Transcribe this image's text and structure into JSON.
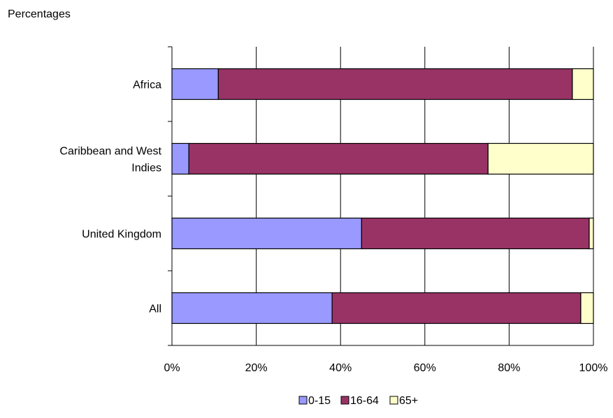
{
  "chart_data": {
    "type": "bar",
    "orientation": "horizontal",
    "stacked": "percent",
    "unit_label": "Percentages",
    "categories": [
      "Africa",
      "Caribbean and West Indies",
      "United Kingdom",
      "All"
    ],
    "category_lines": [
      [
        "Africa"
      ],
      [
        "Caribbean and West",
        "Indies"
      ],
      [
        "United Kingdom"
      ],
      [
        "All"
      ]
    ],
    "series": [
      {
        "name": "0-15",
        "color": "#9999ff",
        "values": [
          11,
          4,
          45,
          38
        ]
      },
      {
        "name": "16-64",
        "color": "#993366",
        "values": [
          84,
          71,
          54,
          59
        ]
      },
      {
        "name": "65+",
        "color": "#ffffcc",
        "values": [
          5,
          25,
          1,
          3
        ]
      }
    ],
    "xlim": [
      0,
      100
    ],
    "xticks": [
      "0%",
      "20%",
      "40%",
      "60%",
      "80%",
      "100%"
    ],
    "grid": true,
    "legend_position": "bottom"
  }
}
